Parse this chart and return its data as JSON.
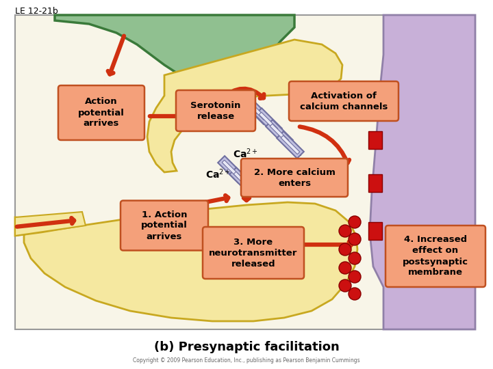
{
  "title": "LE 12-21b",
  "subtitle": "(b) Presynaptic facilitation",
  "copyright": "Copyright © 2009 Pearson Education, Inc., publishing as Pearson Benjamin Cummings",
  "bg_color": "#ffffff",
  "box_fill": "#f4a07a",
  "box_edge": "#c05020",
  "labels": {
    "action_potential": "Action\npotential\narrives",
    "serotonin": "Serotonin\nrelease",
    "activation": "Activation of\ncalcium channels",
    "more_calcium": "2. More calcium\nenters",
    "action_potential2": "1. Action\npotential\narrives",
    "neurotransmitter": "3. More\nneurotransmitter\nreleased",
    "increased": "4. Increased\neffect on\npostsynaptic\nmembrane"
  },
  "colors": {
    "axon_body": "#f5e8a0",
    "axon_border": "#c8a820",
    "green_fill": "#90c090",
    "green_border": "#3a7a3a",
    "purple_fill": "#c8b0d8",
    "purple_border": "#9080a8",
    "arrow_red": "#d03010",
    "channel_fill": "#c0c0e0",
    "channel_border": "#7070a0",
    "red_sq": "#cc1010",
    "red_dot": "#cc1010",
    "white_region": "#f8f5e8"
  }
}
